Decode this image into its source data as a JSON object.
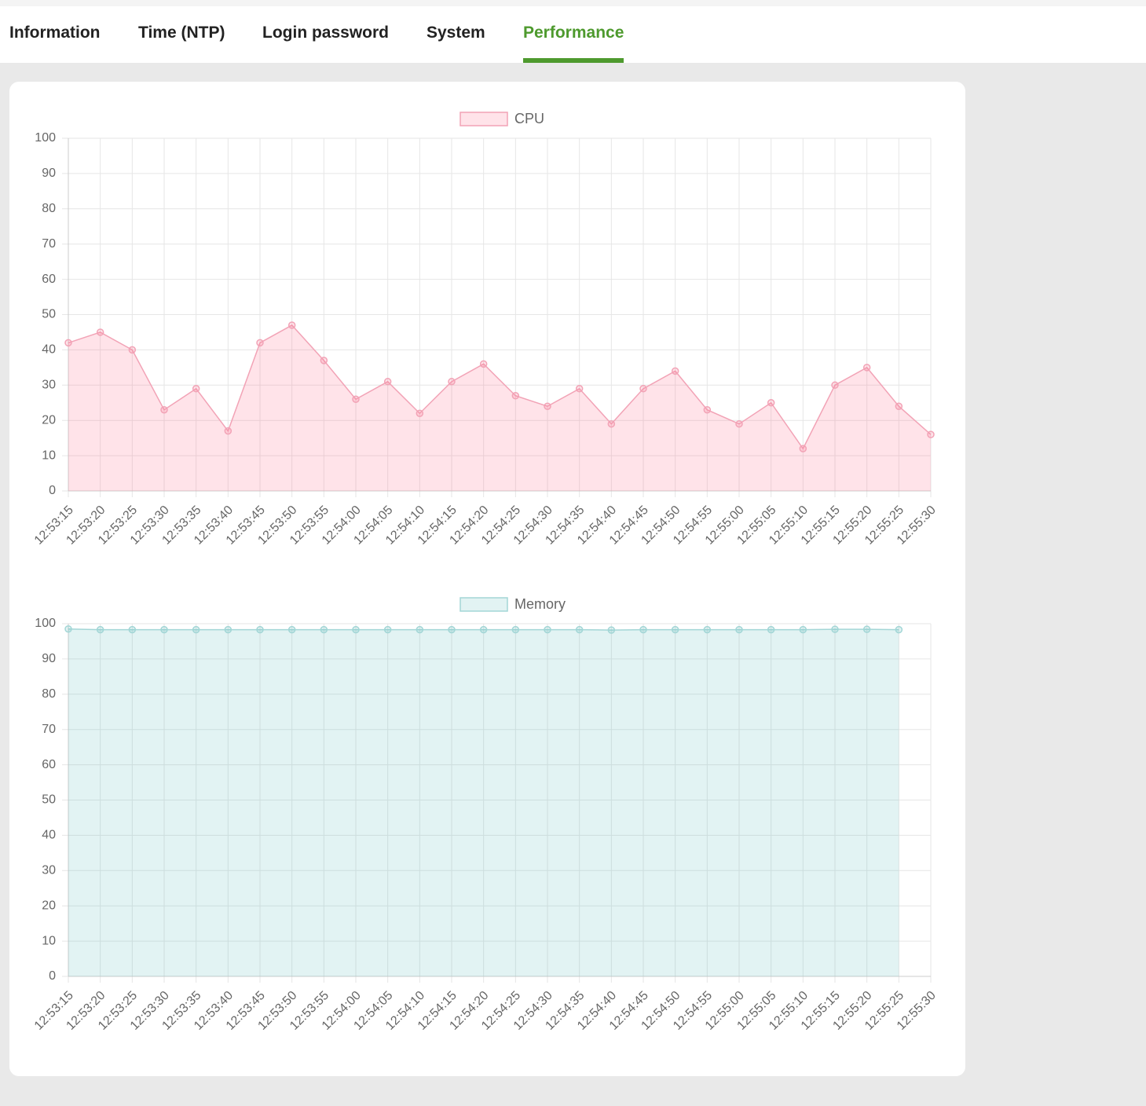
{
  "tabs": [
    "Information",
    "Time (NTP)",
    "Login password",
    "System",
    "Performance"
  ],
  "active_tab": 4,
  "chart_data": [
    {
      "type": "line",
      "area": true,
      "grid": true,
      "categories": [
        "12:53:15",
        "12:53:20",
        "12:53:25",
        "12:53:30",
        "12:53:35",
        "12:53:40",
        "12:53:45",
        "12:53:50",
        "12:53:55",
        "12:54:00",
        "12:54:05",
        "12:54:10",
        "12:54:15",
        "12:54:20",
        "12:54:25",
        "12:54:30",
        "12:54:35",
        "12:54:40",
        "12:54:45",
        "12:54:50",
        "12:54:55",
        "12:55:00",
        "12:55:05",
        "12:55:10",
        "12:55:15",
        "12:55:20",
        "12:55:25",
        "12:55:30"
      ],
      "series": [
        {
          "name": "CPU",
          "color": "#f2a3b6",
          "fill": "rgba(255,99,132,0.18)",
          "values": [
            42,
            45,
            40,
            23,
            29,
            17,
            42,
            47,
            37,
            26,
            31,
            22,
            31,
            36,
            27,
            24,
            29,
            19,
            29,
            34,
            23,
            19,
            25,
            12,
            30,
            35,
            24,
            16
          ]
        }
      ],
      "ylim": [
        0,
        100
      ],
      "yticks": [
        0,
        10,
        20,
        30,
        40,
        50,
        60,
        70,
        80,
        90,
        100
      ]
    },
    {
      "type": "line",
      "area": true,
      "grid": true,
      "categories": [
        "12:53:15",
        "12:53:20",
        "12:53:25",
        "12:53:30",
        "12:53:35",
        "12:53:40",
        "12:53:45",
        "12:53:50",
        "12:53:55",
        "12:54:00",
        "12:54:05",
        "12:54:10",
        "12:54:15",
        "12:54:20",
        "12:54:25",
        "12:54:30",
        "12:54:35",
        "12:54:40",
        "12:54:45",
        "12:54:50",
        "12:54:55",
        "12:55:00",
        "12:55:05",
        "12:55:10",
        "12:55:15",
        "12:55:20",
        "12:55:25",
        "12:55:30"
      ],
      "series": [
        {
          "name": "Memory",
          "color": "#a3d6d6",
          "fill": "rgba(75,180,180,0.16)",
          "values": [
            98.5,
            98.3,
            98.3,
            98.3,
            98.3,
            98.3,
            98.3,
            98.3,
            98.3,
            98.3,
            98.3,
            98.3,
            98.3,
            98.3,
            98.3,
            98.3,
            98.3,
            98.2,
            98.3,
            98.3,
            98.3,
            98.3,
            98.3,
            98.3,
            98.4,
            98.4,
            98.3,
            null
          ]
        }
      ],
      "ylim": [
        0,
        100
      ],
      "yticks": [
        0,
        10,
        20,
        30,
        40,
        50,
        60,
        70,
        80,
        90,
        100
      ]
    }
  ]
}
